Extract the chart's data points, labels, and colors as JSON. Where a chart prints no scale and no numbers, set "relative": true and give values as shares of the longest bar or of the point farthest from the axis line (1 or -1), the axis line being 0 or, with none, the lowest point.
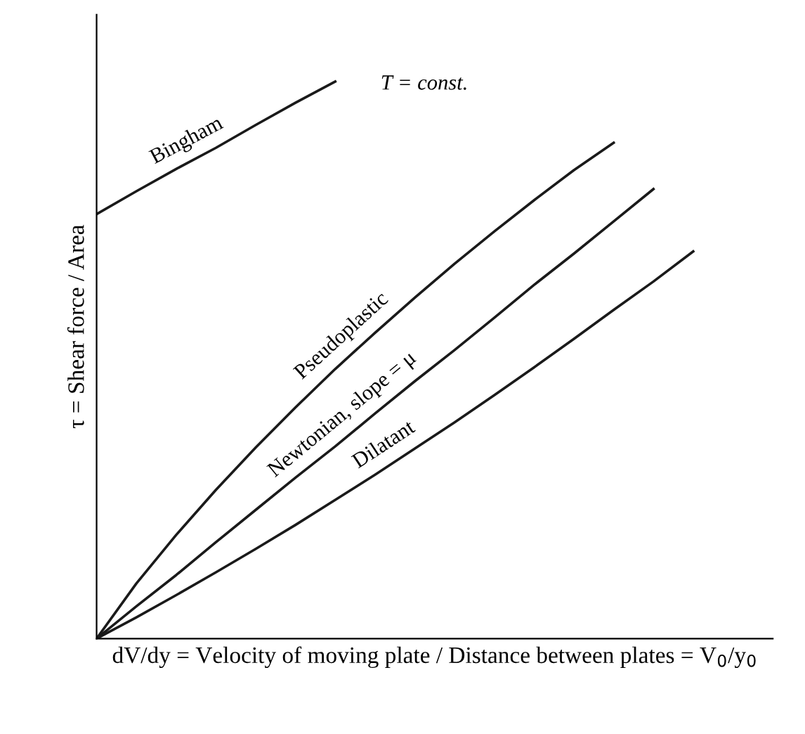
{
  "chart_data": {
    "type": "line",
    "relative": true,
    "xlabel": "dV/dy = Velocity of moving plate / Distance between plates = V$_{0}$/y$_{0}$",
    "ylabel": "τ = Shear force / Area",
    "annotations": [
      "T = const."
    ],
    "categories": [
      null,
      null,
      null,
      null,
      null,
      null,
      null,
      null,
      null,
      null,
      null,
      null,
      null,
      null,
      null,
      null
    ],
    "series": [
      {
        "name": "Bingham",
        "color": "#1a1a1a",
        "values": [
          0.762,
          0.803,
          0.843,
          0.881,
          0.922,
          0.962,
          1,
          null,
          null,
          null,
          null,
          null,
          null,
          null,
          null,
          null
        ]
      },
      {
        "name": "Pseudoplastic",
        "color": "#1a1a1a",
        "values": [
          0,
          0.099,
          0.186,
          0.267,
          0.343,
          0.415,
          0.484,
          0.549,
          0.612,
          0.673,
          0.731,
          0.787,
          0.841,
          0.89,
          null,
          null
        ]
      },
      {
        "name": "Newtonian, slope = μ",
        "color": "#1a1a1a",
        "values": [
          0,
          0.058,
          0.114,
          0.173,
          0.231,
          0.289,
          0.345,
          0.404,
          0.462,
          0.518,
          0.576,
          0.635,
          0.691,
          0.749,
          0.807,
          null
        ]
      },
      {
        "name": "Dilatant",
        "color": "#1a1a1a",
        "values": [
          0,
          0.038,
          0.078,
          0.119,
          0.161,
          0.204,
          0.249,
          0.294,
          0.341,
          0.388,
          0.437,
          0.487,
          0.538,
          0.59,
          0.641,
          0.695
        ]
      }
    ],
    "legend": false,
    "marker": "none",
    "line_style": "solid"
  }
}
